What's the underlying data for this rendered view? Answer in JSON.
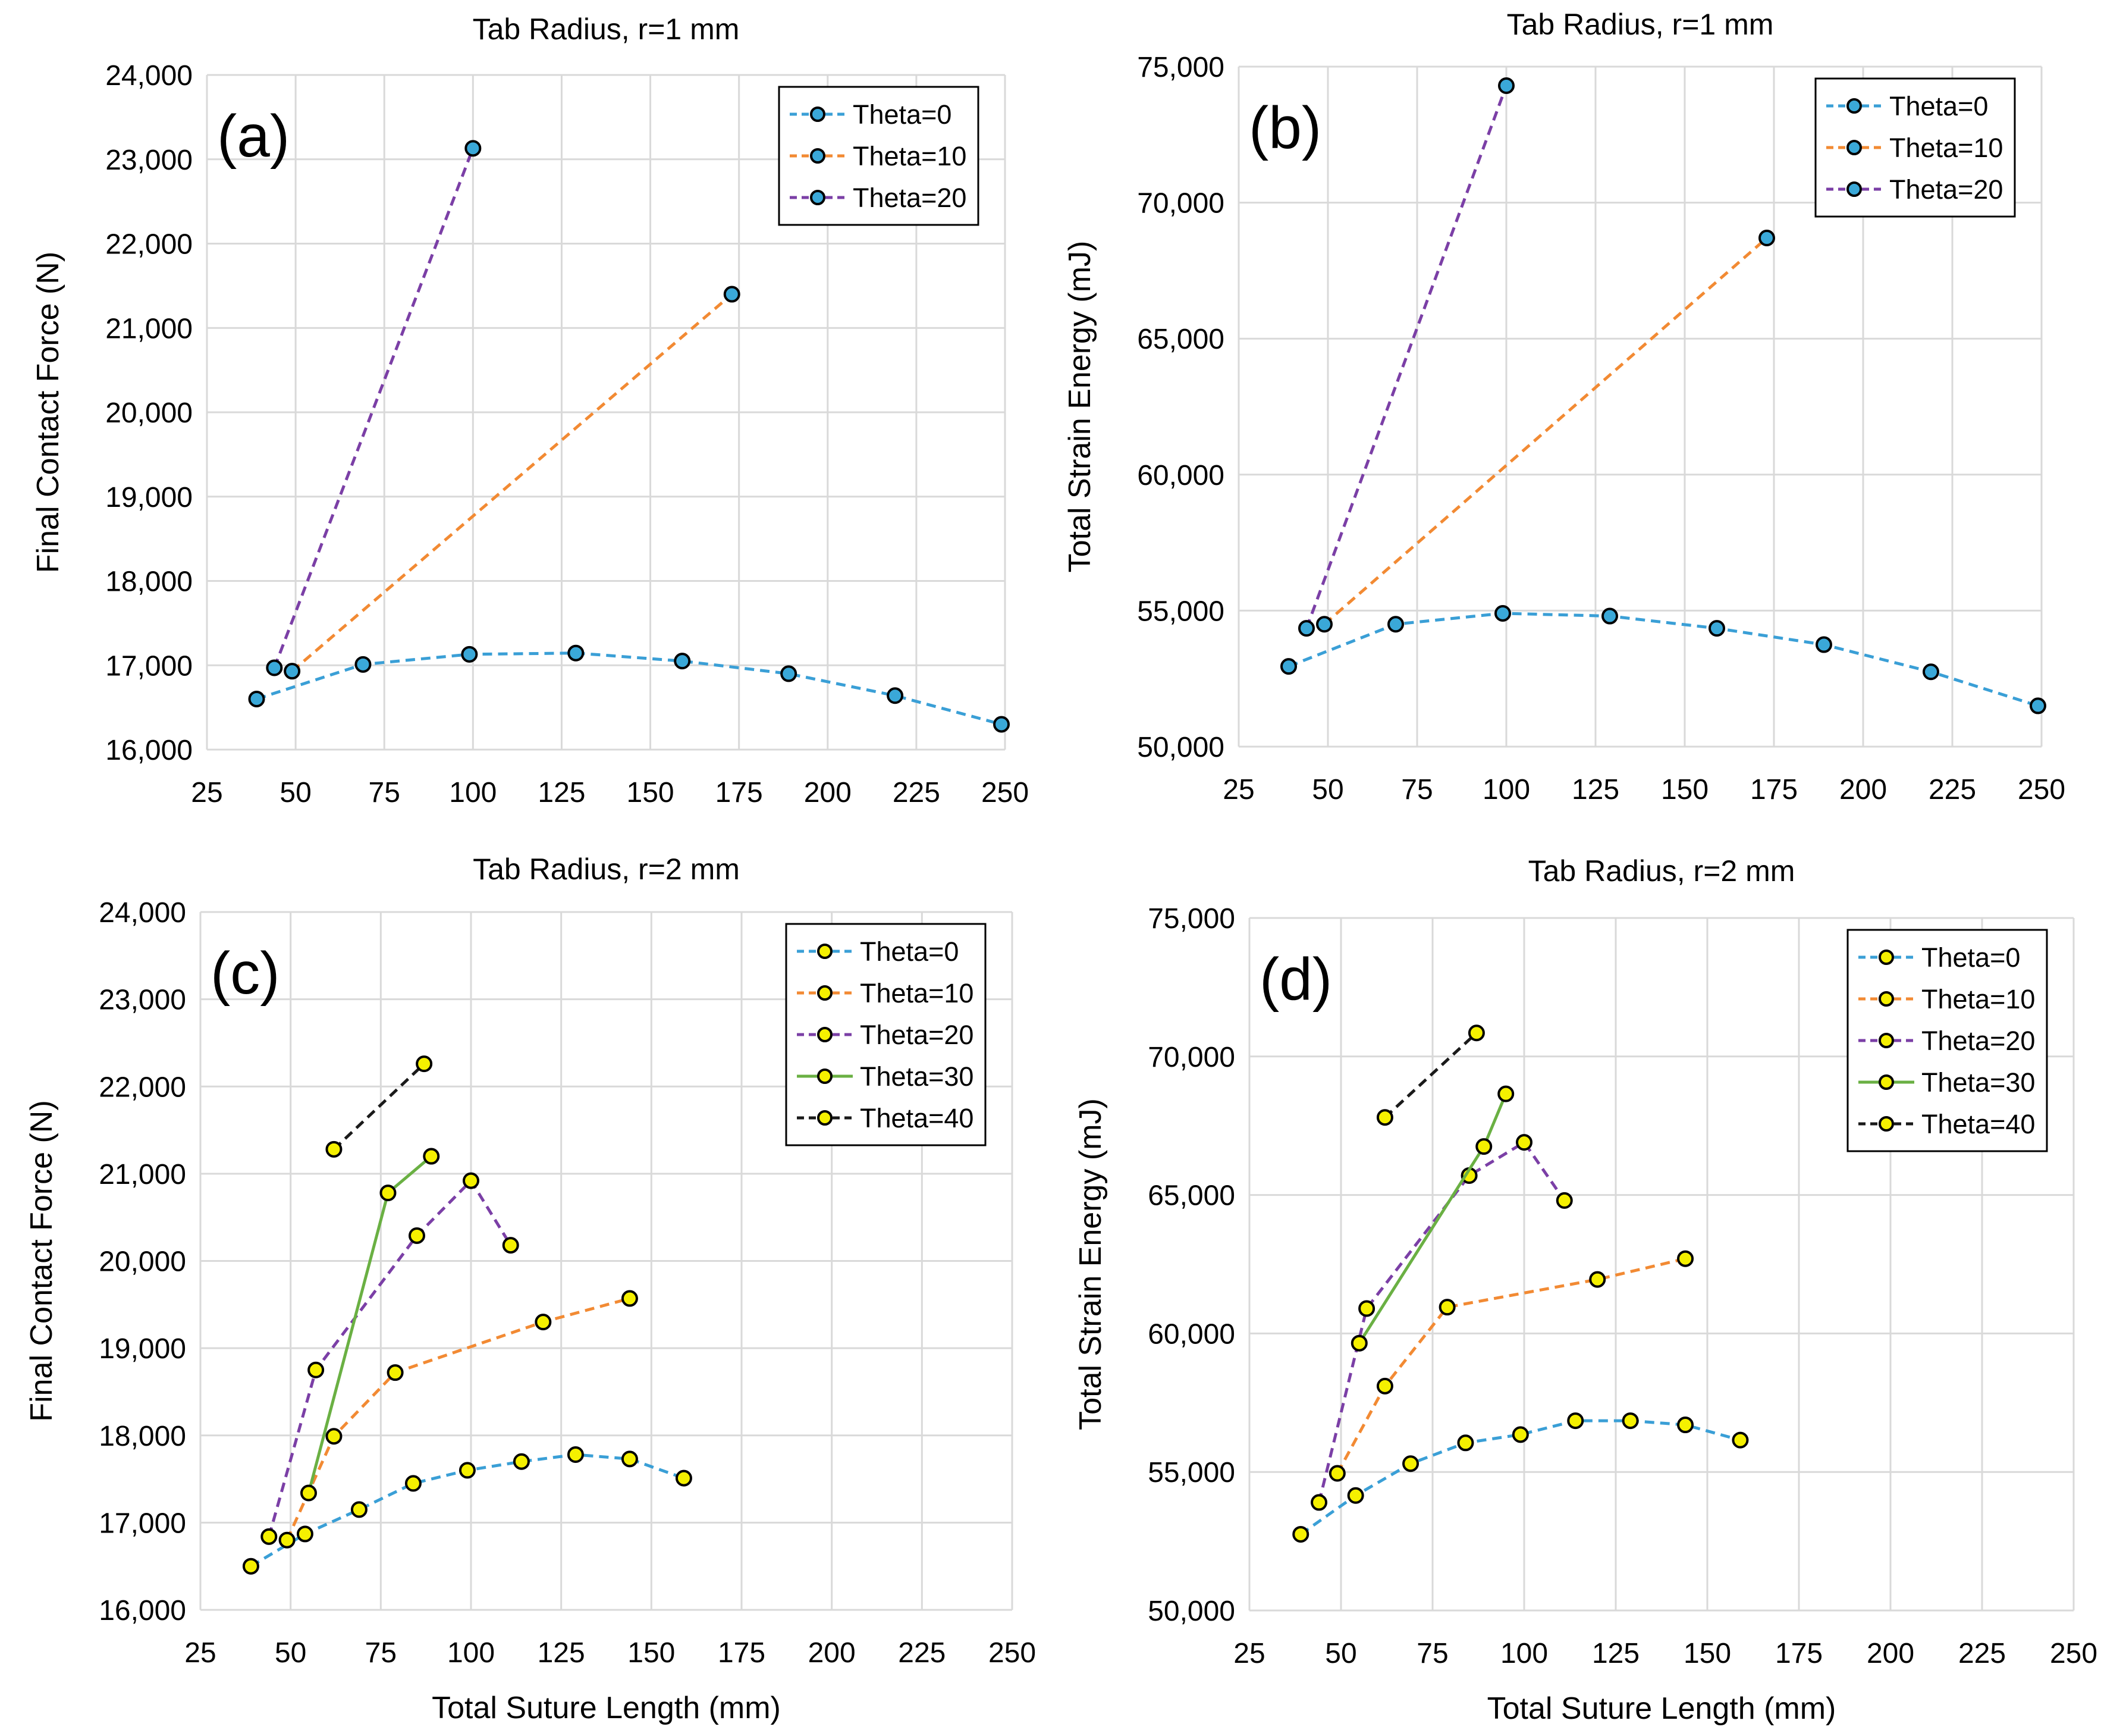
{
  "figure_caption": "",
  "chart_data": [
    {
      "id": "a",
      "type": "line",
      "panel_label": "(a)",
      "title": "Tab Radius, r=1 mm",
      "xlabel": "",
      "ylabel": "Final Contact Force (N)",
      "xlim": [
        25,
        250
      ],
      "ylim": [
        16000,
        24000
      ],
      "xticks": [
        25,
        50,
        75,
        100,
        125,
        150,
        175,
        200,
        225,
        250
      ],
      "yticks": [
        16000,
        17000,
        18000,
        19000,
        20000,
        21000,
        22000,
        23000,
        24000
      ],
      "xtick_labels": [
        "25",
        "50",
        "75",
        "100",
        "125",
        "150",
        "175",
        "200",
        "225",
        "250"
      ],
      "ytick_labels": [
        "16,000",
        "17,000",
        "18,000",
        "19,000",
        "20,000",
        "21,000",
        "22,000",
        "23,000",
        "24,000"
      ],
      "grid": true,
      "legend_position": "top-right",
      "marker_fill": "#3aa8d8",
      "series": [
        {
          "name": "Theta=0",
          "color": "#3a9fd6",
          "dash": "dashed",
          "x": [
            39,
            69,
            99,
            129,
            159,
            189,
            219,
            249
          ],
          "y": [
            16600,
            17010,
            17130,
            17145,
            17050,
            16900,
            16640,
            16300
          ]
        },
        {
          "name": "Theta=10",
          "color": "#f28a33",
          "dash": "dashed",
          "x": [
            49,
            173
          ],
          "y": [
            16930,
            21400
          ]
        },
        {
          "name": "Theta=20",
          "color": "#7b3fa6",
          "dash": "dashed",
          "x": [
            44,
            100
          ],
          "y": [
            16970,
            23130
          ]
        }
      ]
    },
    {
      "id": "b",
      "type": "line",
      "panel_label": "(b)",
      "title": "Tab Radius, r=1 mm",
      "xlabel": "",
      "ylabel": "Total Strain Energy (mJ)",
      "xlim": [
        25,
        250
      ],
      "ylim": [
        50000,
        75000
      ],
      "xticks": [
        25,
        50,
        75,
        100,
        125,
        150,
        175,
        200,
        225,
        250
      ],
      "yticks": [
        50000,
        55000,
        60000,
        65000,
        70000,
        75000
      ],
      "xtick_labels": [
        "25",
        "50",
        "75",
        "100",
        "125",
        "150",
        "175",
        "200",
        "225",
        "250"
      ],
      "ytick_labels": [
        "50,000",
        "55,000",
        "60,000",
        "65,000",
        "70,000",
        "75,000"
      ],
      "grid": true,
      "legend_position": "top-right",
      "marker_fill": "#3aa8d8",
      "series": [
        {
          "name": "Theta=0",
          "color": "#3a9fd6",
          "dash": "dashed",
          "x": [
            39,
            69,
            99,
            129,
            159,
            189,
            219,
            249
          ],
          "y": [
            52950,
            54500,
            54900,
            54800,
            54350,
            53750,
            52750,
            51500
          ]
        },
        {
          "name": "Theta=10",
          "color": "#f28a33",
          "dash": "dashed",
          "x": [
            49,
            173
          ],
          "y": [
            54500,
            68700
          ]
        },
        {
          "name": "Theta=20",
          "color": "#7b3fa6",
          "dash": "dashed",
          "x": [
            44,
            100
          ],
          "y": [
            54350,
            74300
          ]
        }
      ]
    },
    {
      "id": "c",
      "type": "line",
      "panel_label": "(c)",
      "title": "Tab Radius, r=2 mm",
      "xlabel": "Total Suture Length (mm)",
      "ylabel": "Final Contact Force (N)",
      "xlim": [
        25,
        250
      ],
      "ylim": [
        16000,
        24000
      ],
      "xticks": [
        25,
        50,
        75,
        100,
        125,
        150,
        175,
        200,
        225,
        250
      ],
      "yticks": [
        16000,
        17000,
        18000,
        19000,
        20000,
        21000,
        22000,
        23000,
        24000
      ],
      "xtick_labels": [
        "25",
        "50",
        "75",
        "100",
        "125",
        "150",
        "175",
        "200",
        "225",
        "250"
      ],
      "ytick_labels": [
        "16,000",
        "17,000",
        "18,000",
        "19,000",
        "20,000",
        "21,000",
        "22,000",
        "23,000",
        "24,000"
      ],
      "grid": true,
      "legend_position": "top-right",
      "marker_fill": "#f5f000",
      "series": [
        {
          "name": "Theta=0",
          "color": "#3a9fd6",
          "dash": "dashed",
          "x": [
            39,
            54,
            69,
            84,
            99,
            114,
            129,
            144,
            159
          ],
          "y": [
            16500,
            16870,
            17150,
            17450,
            17600,
            17700,
            17780,
            17730,
            17510
          ]
        },
        {
          "name": "Theta=10",
          "color": "#f28a33",
          "dash": "dashed",
          "x": [
            49,
            62,
            79,
            120,
            144
          ],
          "y": [
            16800,
            17990,
            18720,
            19300,
            19570
          ]
        },
        {
          "name": "Theta=20",
          "color": "#7b3fa6",
          "dash": "dashed",
          "x": [
            44,
            57,
            85,
            100,
            111
          ],
          "y": [
            16840,
            18750,
            20290,
            20920,
            20180
          ]
        },
        {
          "name": "Theta=30",
          "color": "#6ab043",
          "dash": "solid",
          "x": [
            55,
            77,
            89
          ],
          "y": [
            17340,
            20780,
            21200
          ]
        },
        {
          "name": "Theta=40",
          "color": "#1a1a1a",
          "dash": "dashed",
          "x": [
            62,
            87
          ],
          "y": [
            21280,
            22260
          ]
        }
      ]
    },
    {
      "id": "d",
      "type": "line",
      "panel_label": "(d)",
      "title": "Tab Radius, r=2 mm",
      "xlabel": "Total Suture Length (mm)",
      "ylabel": "Total Strain Energy (mJ)",
      "xlim": [
        25,
        250
      ],
      "ylim": [
        50000,
        75000
      ],
      "xticks": [
        25,
        50,
        75,
        100,
        125,
        150,
        175,
        200,
        225,
        250
      ],
      "yticks": [
        50000,
        55000,
        60000,
        65000,
        70000,
        75000
      ],
      "xtick_labels": [
        "25",
        "50",
        "75",
        "100",
        "125",
        "150",
        "175",
        "200",
        "225",
        "250"
      ],
      "ytick_labels": [
        "50,000",
        "55,000",
        "60,000",
        "65,000",
        "70,000",
        "75,000"
      ],
      "grid": true,
      "legend_position": "top-right",
      "marker_fill": "#f5f000",
      "series": [
        {
          "name": "Theta=0",
          "color": "#3a9fd6",
          "dash": "dashed",
          "x": [
            39,
            54,
            69,
            84,
            99,
            114,
            129,
            144,
            159
          ],
          "y": [
            52750,
            54150,
            55300,
            56050,
            56350,
            56850,
            56850,
            56700,
            56150
          ]
        },
        {
          "name": "Theta=10",
          "color": "#f28a33",
          "dash": "dashed",
          "x": [
            49,
            62,
            79,
            120,
            144
          ],
          "y": [
            54950,
            58100,
            60950,
            61950,
            62700
          ]
        },
        {
          "name": "Theta=20",
          "color": "#7b3fa6",
          "dash": "dashed",
          "x": [
            44,
            57,
            85,
            100,
            111
          ],
          "y": [
            53900,
            60900,
            65700,
            66900,
            64800
          ]
        },
        {
          "name": "Theta=30",
          "color": "#6ab043",
          "dash": "solid",
          "x": [
            55,
            89,
            95
          ],
          "y": [
            59650,
            66750,
            68650
          ]
        },
        {
          "name": "Theta=40",
          "color": "#1a1a1a",
          "dash": "dashed",
          "x": [
            62,
            87
          ],
          "y": [
            67800,
            70850
          ]
        }
      ]
    }
  ]
}
